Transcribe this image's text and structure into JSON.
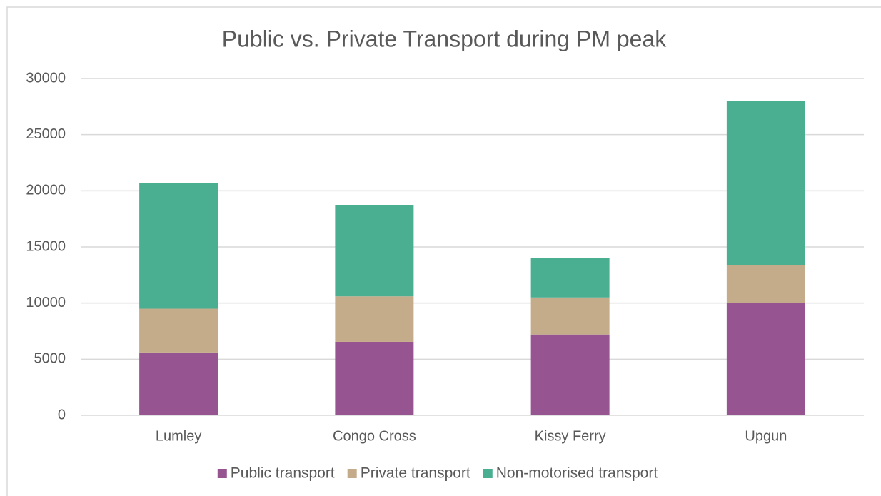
{
  "chart_data": {
    "type": "stacked_bar",
    "title": "Public vs. Private Transport during PM peak",
    "categories": [
      "Lumley",
      "Congo Cross",
      "Kissy Ferry",
      "Upgun"
    ],
    "series": [
      {
        "name": "Public transport",
        "color": "#965591",
        "values": [
          5600,
          6550,
          7200,
          10000
        ]
      },
      {
        "name": "Private transport",
        "color": "#c4ab8a",
        "values": [
          3900,
          4050,
          3300,
          3400
        ]
      },
      {
        "name": "Non-motorised transport",
        "color": "#4aaf91",
        "values": [
          11200,
          8150,
          3500,
          14600
        ]
      }
    ],
    "ylim": [
      0,
      30000
    ],
    "yticks": [
      0,
      5000,
      10000,
      15000,
      20000,
      25000,
      30000
    ],
    "grid": true,
    "legend": "bottom"
  }
}
